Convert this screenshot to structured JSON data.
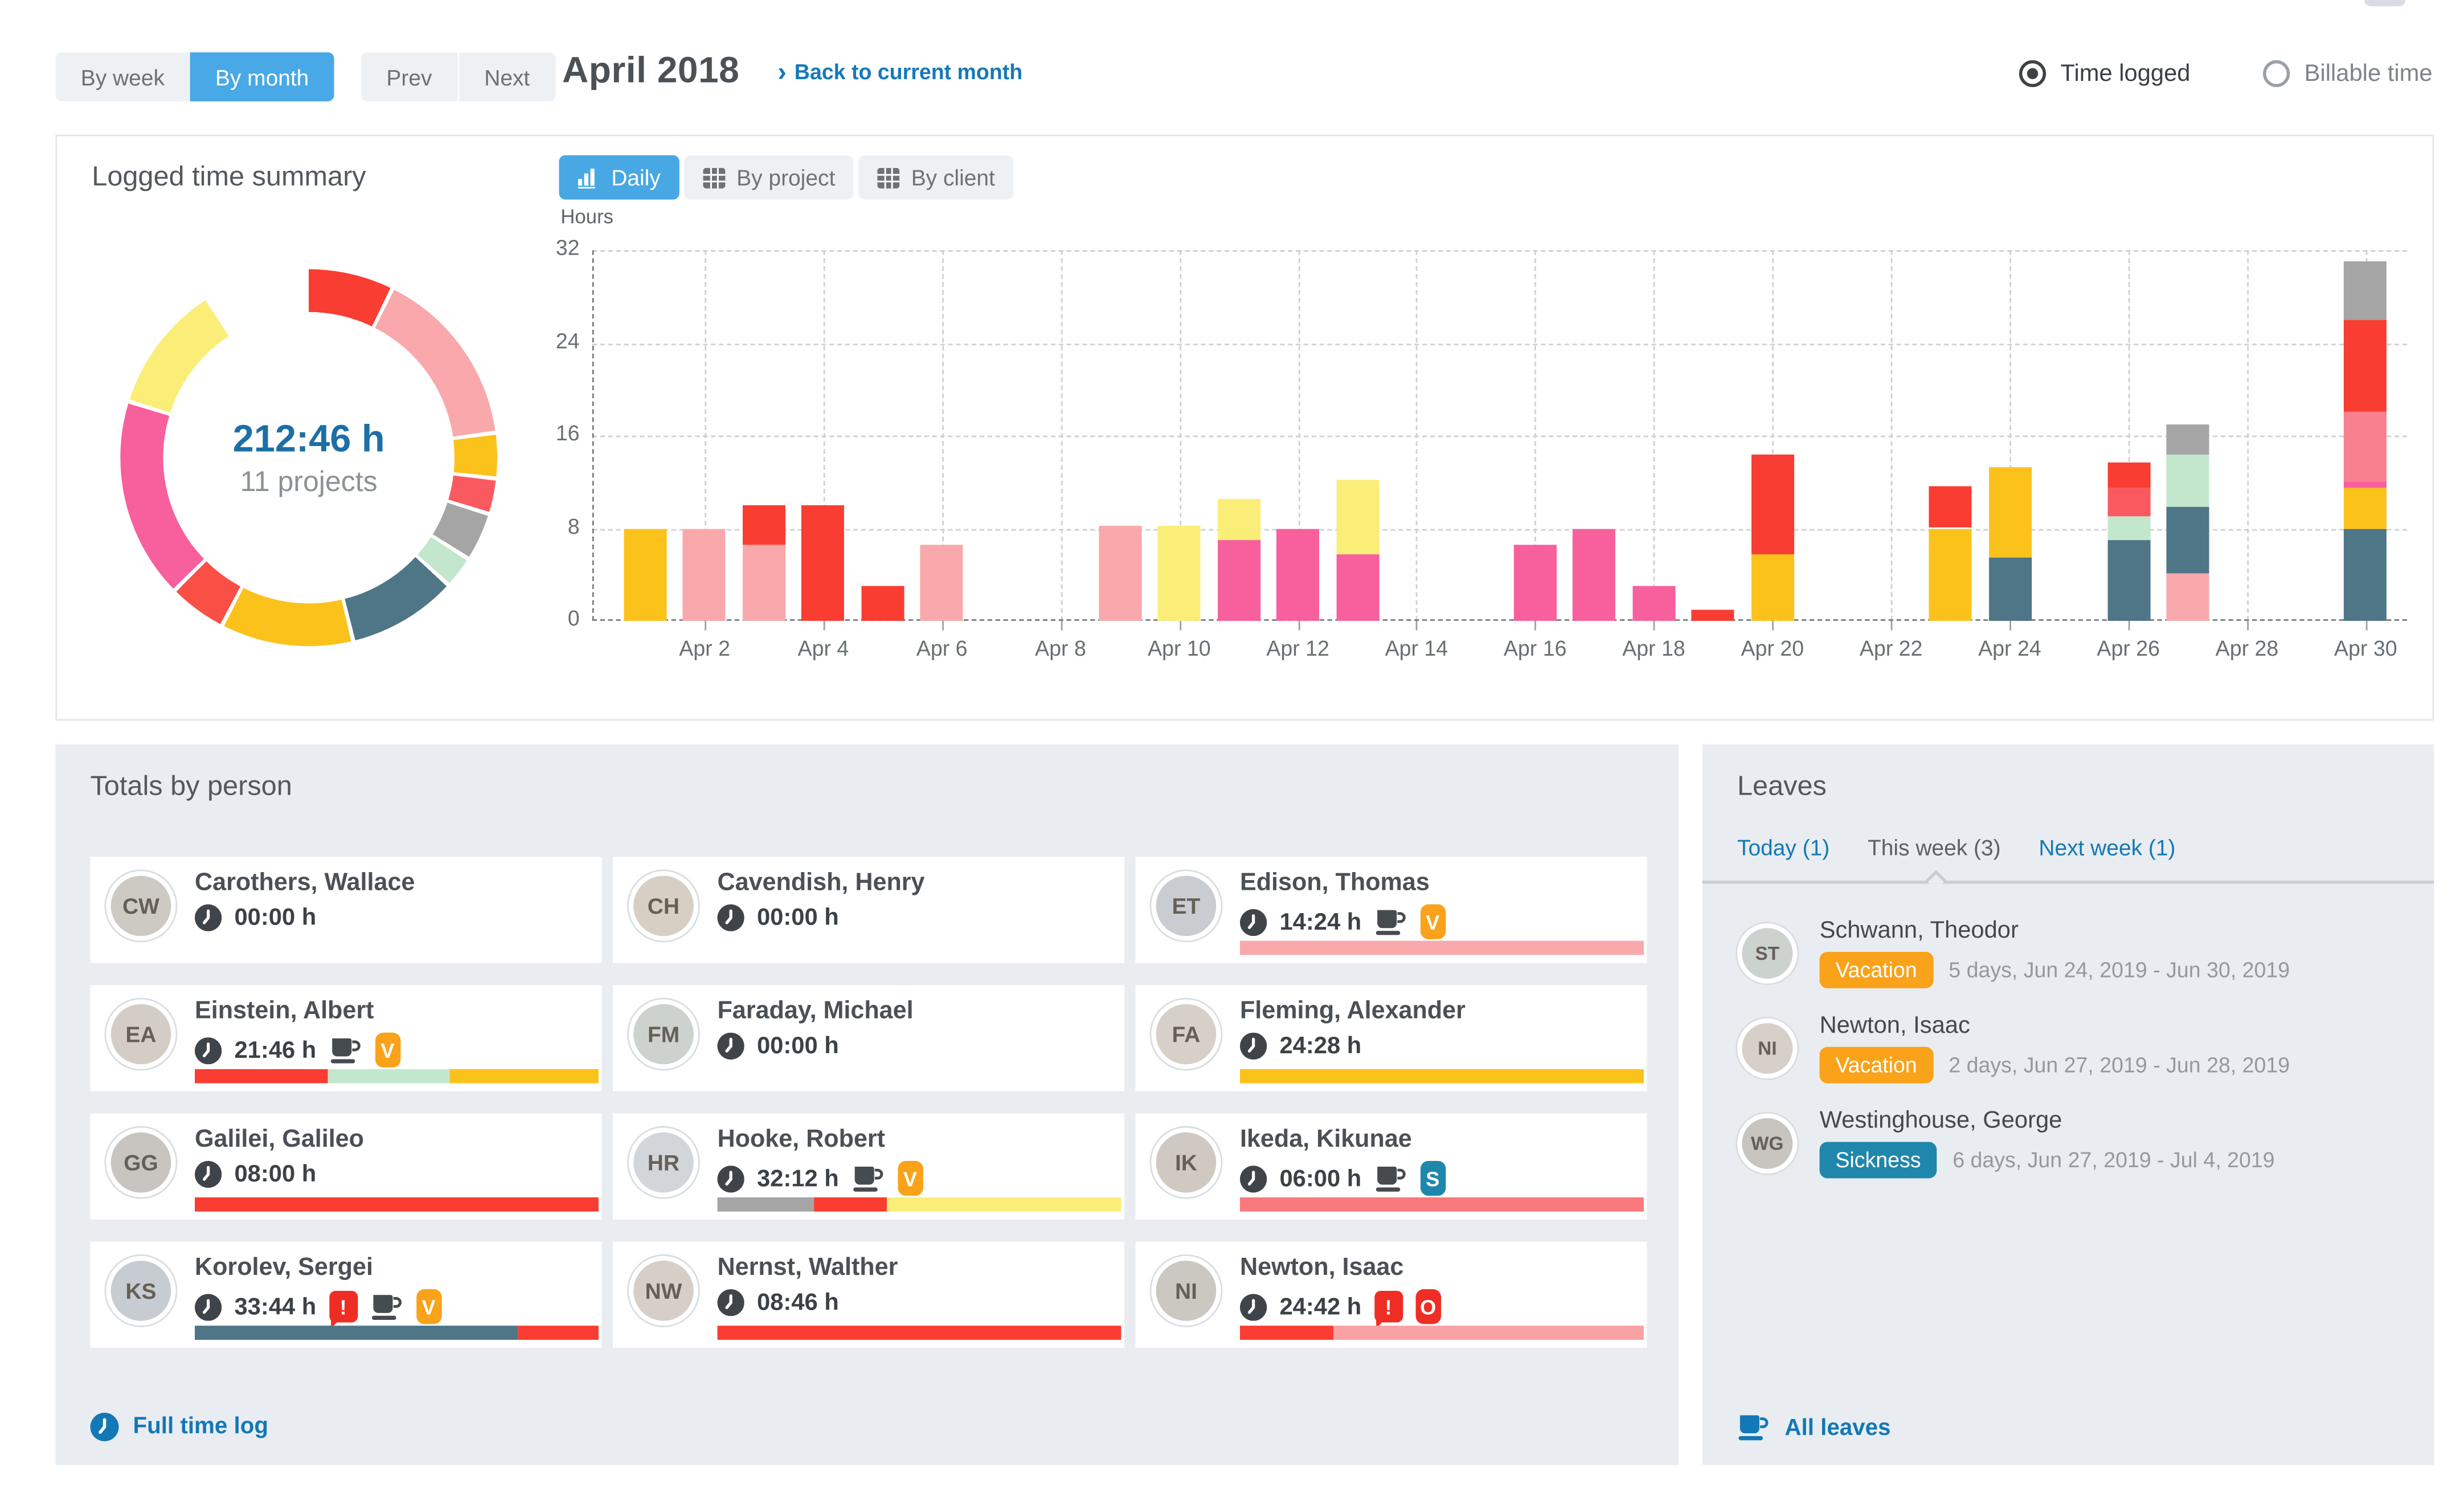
{
  "toolbar": {
    "by_week": "By week",
    "by_month": "By month",
    "prev": "Prev",
    "next": "Next",
    "title": "April 2018",
    "back_link": "Back to current month",
    "time_logged": "Time logged",
    "billable_time": "Billable time"
  },
  "summary": {
    "title": "Logged time summary",
    "total_hours": "212:46 h",
    "projects_label": "11 projects",
    "donut_start_angle_deg": -32,
    "donut_segments": [
      {
        "color": "red",
        "deg": 59
      },
      {
        "color": "lightpink",
        "deg": 56
      },
      {
        "color": "amber",
        "deg": 14
      },
      {
        "color": "salmonred",
        "deg": 11
      },
      {
        "color": "gray",
        "deg": 15
      },
      {
        "color": "lightgreen",
        "deg": 10
      },
      {
        "color": "teal",
        "deg": 34
      },
      {
        "color": "amber",
        "deg": 41
      },
      {
        "color": "red2",
        "deg": 18
      },
      {
        "color": "magenta",
        "deg": 62
      },
      {
        "color": "paleyellow",
        "deg": 40
      }
    ]
  },
  "chart": {
    "tabs": [
      "Daily",
      "By project",
      "By client"
    ],
    "active_tab": "Daily"
  },
  "chart_data": {
    "type": "bar",
    "stacked": true,
    "title": "Daily logged hours, April 2018",
    "ylabel": "Hours",
    "ylim": [
      0,
      32
    ],
    "yticks": [
      0,
      8,
      16,
      24,
      32
    ],
    "xtick_labels": [
      "Apr 2",
      "Apr 4",
      "Apr 6",
      "Apr 8",
      "Apr 10",
      "Apr 12",
      "Apr 14",
      "Apr 16",
      "Apr 18",
      "Apr 20",
      "Apr 22",
      "Apr 24",
      "Apr 26",
      "Apr 28",
      "Apr 30"
    ],
    "days": [
      {
        "label": "Apr 1",
        "segments": [
          {
            "color": "amber",
            "hours": 8
          }
        ]
      },
      {
        "label": "Apr 2",
        "segments": [
          {
            "color": "lightpink",
            "hours": 8
          }
        ]
      },
      {
        "label": "Apr 3",
        "segments": [
          {
            "color": "lightpink",
            "hours": 6.5
          },
          {
            "color": "red",
            "hours": 3.5
          }
        ]
      },
      {
        "label": "Apr 4",
        "segments": [
          {
            "color": "red",
            "hours": 10
          }
        ]
      },
      {
        "label": "Apr 5",
        "segments": [
          {
            "color": "red",
            "hours": 3
          }
        ]
      },
      {
        "label": "Apr 6",
        "segments": [
          {
            "color": "lightpink",
            "hours": 6.5
          }
        ]
      },
      {
        "label": "Apr 7",
        "segments": []
      },
      {
        "label": "Apr 8",
        "segments": []
      },
      {
        "label": "Apr 9",
        "segments": [
          {
            "color": "lightpink",
            "hours": 8.2
          }
        ]
      },
      {
        "label": "Apr 10",
        "segments": [
          {
            "color": "paleyellow",
            "hours": 8.2
          }
        ]
      },
      {
        "label": "Apr 11",
        "segments": [
          {
            "color": "magenta",
            "hours": 7
          },
          {
            "color": "paleyellow",
            "hours": 3.5
          }
        ]
      },
      {
        "label": "Apr 12",
        "segments": [
          {
            "color": "magenta",
            "hours": 8
          }
        ]
      },
      {
        "label": "Apr 13",
        "segments": [
          {
            "color": "magenta",
            "hours": 5.7
          },
          {
            "color": "paleyellow",
            "hours": 6.5
          }
        ]
      },
      {
        "label": "Apr 14",
        "segments": []
      },
      {
        "label": "Apr 15",
        "segments": []
      },
      {
        "label": "Apr 16",
        "segments": [
          {
            "color": "magenta",
            "hours": 6.5
          }
        ]
      },
      {
        "label": "Apr 17",
        "segments": [
          {
            "color": "magenta",
            "hours": 8
          }
        ]
      },
      {
        "label": "Apr 18",
        "segments": [
          {
            "color": "magenta",
            "hours": 3
          }
        ]
      },
      {
        "label": "Apr 19",
        "segments": [
          {
            "color": "red",
            "hours": 0.9
          }
        ]
      },
      {
        "label": "Apr 20",
        "segments": [
          {
            "color": "amber",
            "hours": 5.8
          },
          {
            "color": "red",
            "hours": 8.5
          }
        ]
      },
      {
        "label": "Apr 21",
        "segments": []
      },
      {
        "label": "Apr 22",
        "segments": []
      },
      {
        "label": "Apr 23",
        "segments": [
          {
            "color": "amber",
            "hours": 8
          },
          {
            "color": "red",
            "hours": 3.6
          }
        ]
      },
      {
        "label": "Apr 24",
        "segments": [
          {
            "color": "teal",
            "hours": 5.5
          },
          {
            "color": "amber",
            "hours": 7.8
          }
        ]
      },
      {
        "label": "Apr 25",
        "segments": []
      },
      {
        "label": "Apr 26",
        "segments": [
          {
            "color": "teal",
            "hours": 7
          },
          {
            "color": "lightgreen",
            "hours": 2
          },
          {
            "color": "salmonred",
            "hours": 2.5
          },
          {
            "color": "red",
            "hours": 2.2
          }
        ]
      },
      {
        "label": "Apr 27",
        "segments": [
          {
            "color": "lightpink",
            "hours": 4.1
          },
          {
            "color": "teal",
            "hours": 5.7
          },
          {
            "color": "lightgreen",
            "hours": 4.6
          },
          {
            "color": "gray",
            "hours": 2.6
          }
        ]
      },
      {
        "label": "Apr 28",
        "segments": []
      },
      {
        "label": "Apr 29",
        "segments": []
      },
      {
        "label": "Apr 30",
        "segments": [
          {
            "color": "teal",
            "hours": 8
          },
          {
            "color": "amber",
            "hours": 3.5
          },
          {
            "color": "magenta",
            "hours": 0.6
          },
          {
            "color": "midpink",
            "hours": 6
          },
          {
            "color": "red",
            "hours": 7.9
          },
          {
            "color": "gray",
            "hours": 5
          }
        ]
      }
    ]
  },
  "people": {
    "title": "Totals by person",
    "footer_link": "Full time log",
    "cards": [
      {
        "name": "Carothers, Wallace",
        "time": "00:00 h",
        "badges": [],
        "bar": []
      },
      {
        "name": "Cavendish, Henry",
        "time": "00:00 h",
        "badges": [],
        "bar": []
      },
      {
        "name": "Edison, Thomas",
        "time": "14:24 h",
        "badges": [
          "coffee",
          "vacation"
        ],
        "bar": [
          {
            "color": "lightpink",
            "pct": 100
          }
        ]
      },
      {
        "name": "Einstein, Albert",
        "time": "21:46 h",
        "badges": [
          "coffee",
          "vacation"
        ],
        "bar": [
          {
            "color": "red",
            "pct": 33
          },
          {
            "color": "lightgreen",
            "pct": 30
          },
          {
            "color": "amber",
            "pct": 37
          }
        ]
      },
      {
        "name": "Faraday, Michael",
        "time": "00:00 h",
        "badges": [],
        "bar": []
      },
      {
        "name": "Fleming, Alexander",
        "time": "24:28 h",
        "badges": [],
        "bar": [
          {
            "color": "amber",
            "pct": 100
          }
        ]
      },
      {
        "name": "Galilei, Galileo",
        "time": "08:00 h",
        "badges": [],
        "bar": [
          {
            "color": "red",
            "pct": 100
          }
        ]
      },
      {
        "name": "Hooke, Robert",
        "time": "32:12 h",
        "badges": [
          "coffee",
          "vacation"
        ],
        "bar": [
          {
            "color": "gray",
            "pct": 24
          },
          {
            "color": "red",
            "pct": 18
          },
          {
            "color": "paleyellow",
            "pct": 58
          }
        ]
      },
      {
        "name": "Ikeda, Kikunae",
        "time": "06:00 h",
        "badges": [
          "coffee",
          "sickness"
        ],
        "bar": [
          {
            "color": "salmon",
            "pct": 100
          }
        ]
      },
      {
        "name": "Korolev, Sergei",
        "time": "33:44 h",
        "badges": [
          "alert",
          "coffee",
          "vacation"
        ],
        "bar": [
          {
            "color": "teal",
            "pct": 80
          },
          {
            "color": "red",
            "pct": 20
          }
        ]
      },
      {
        "name": "Nernst, Walther",
        "time": "08:46 h",
        "badges": [],
        "bar": [
          {
            "color": "red",
            "pct": 100
          }
        ]
      },
      {
        "name": "Newton, Isaac",
        "time": "24:42 h",
        "badges": [
          "alert",
          "other"
        ],
        "bar": [
          {
            "color": "red",
            "pct": 23
          },
          {
            "color": "lightpink2",
            "pct": 77
          }
        ]
      }
    ]
  },
  "leaves": {
    "title": "Leaves",
    "tabs": [
      "Today (1)",
      "This week (3)",
      "Next week (1)"
    ],
    "active_tab_index": 1,
    "items": [
      {
        "name": "Schwann, Theodor",
        "type": "Vacation",
        "dates": "5 days, Jun 24, 2019 - Jun 30, 2019"
      },
      {
        "name": "Newton, Isaac",
        "type": "Vacation",
        "dates": "2 days, Jun 27, 2019 - Jun 28, 2019"
      },
      {
        "name": "Westinghouse, George",
        "type": "Sickness",
        "dates": "6 days, Jun 27, 2019 - Jul 4, 2019"
      }
    ],
    "footer_link": "All leaves"
  },
  "colors": {
    "palette": {
      "amber": "#fcc21c",
      "paleyellow": "#fbee78",
      "lightpink": "#f9a9ac",
      "lightpink2": "#f9a2a6",
      "midpink": "#f9818f",
      "salmon": "#f9797d",
      "salmonred": "#fa5a5f",
      "red": "#f93d32",
      "red2": "#fa4f45",
      "magenta": "#f75f9d",
      "teal": "#4e7687",
      "lightgreen": "#c3e7cd",
      "gray": "#a5a5a5"
    },
    "accent_blue": "#48a9e6",
    "link_blue": "#1378b5",
    "badge_orange": "#f9a21a",
    "badge_teal": "#1f87ab",
    "badge_red": "#ee2e24",
    "total_blue": "#1d6fa5",
    "section_bg": "#e9edf1"
  }
}
